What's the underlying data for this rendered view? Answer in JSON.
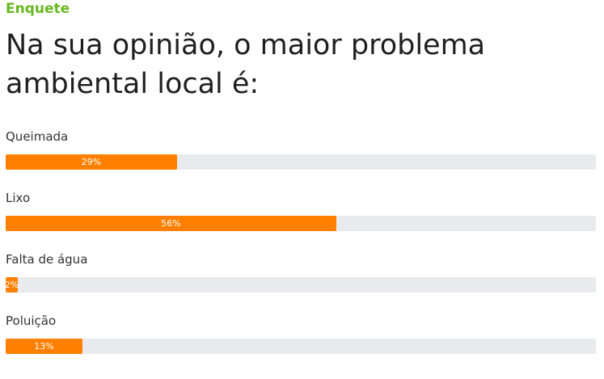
{
  "header": {
    "label": "Enquete",
    "question": "Na sua opinião, o maior problema ambiental local é:"
  },
  "bar_color": "#ff8000",
  "options": [
    {
      "label": "Queimada",
      "value": 29,
      "value_label": "29%"
    },
    {
      "label": "Lixo",
      "value": 56,
      "value_label": "56%"
    },
    {
      "label": "Falta de água",
      "value": 2,
      "value_label": "2%"
    },
    {
      "label": "Poluição",
      "value": 13,
      "value_label": "13%"
    }
  ]
}
